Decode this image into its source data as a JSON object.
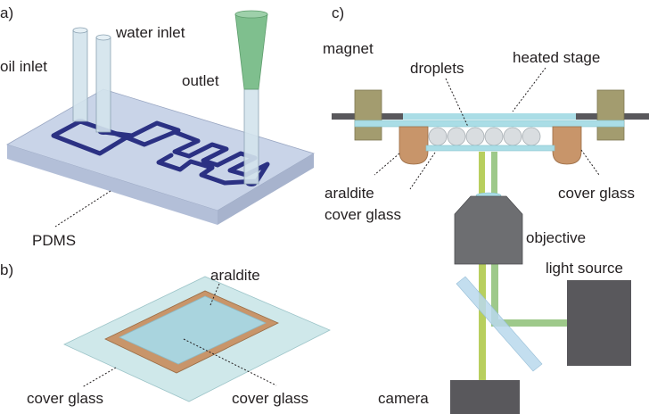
{
  "panels": {
    "a": "a)",
    "b": "b)",
    "c": "c)"
  },
  "panel_a": {
    "oil_inlet": "oil inlet",
    "water_inlet": "water inlet",
    "outlet": "outlet",
    "pdms": "PDMS"
  },
  "panel_b": {
    "araldite": "araldite",
    "cover_glass_left": "cover glass",
    "cover_glass_right": "cover glass"
  },
  "panel_c": {
    "magnet": "magnet",
    "droplets": "droplets",
    "heated_stage": "heated stage",
    "araldite": "araldite",
    "cover_glass_left": "cover glass",
    "cover_glass_right": "cover glass",
    "objective": "objective",
    "light_source": "light source",
    "camera": "camera"
  },
  "colors": {
    "pdms": "#c9d4e8",
    "channel": "#2b3183",
    "tube": "#d3e3ec",
    "outlet_tip": "#7fbf8e",
    "glass": "#aadde6",
    "araldite": "#c8956a",
    "magnet": "#a39c6f",
    "stage_bar": "#59585c",
    "objective": "#6d6e71",
    "beam": "#b8cf5e",
    "light_source": "#59585c",
    "camera": "#59585c"
  }
}
